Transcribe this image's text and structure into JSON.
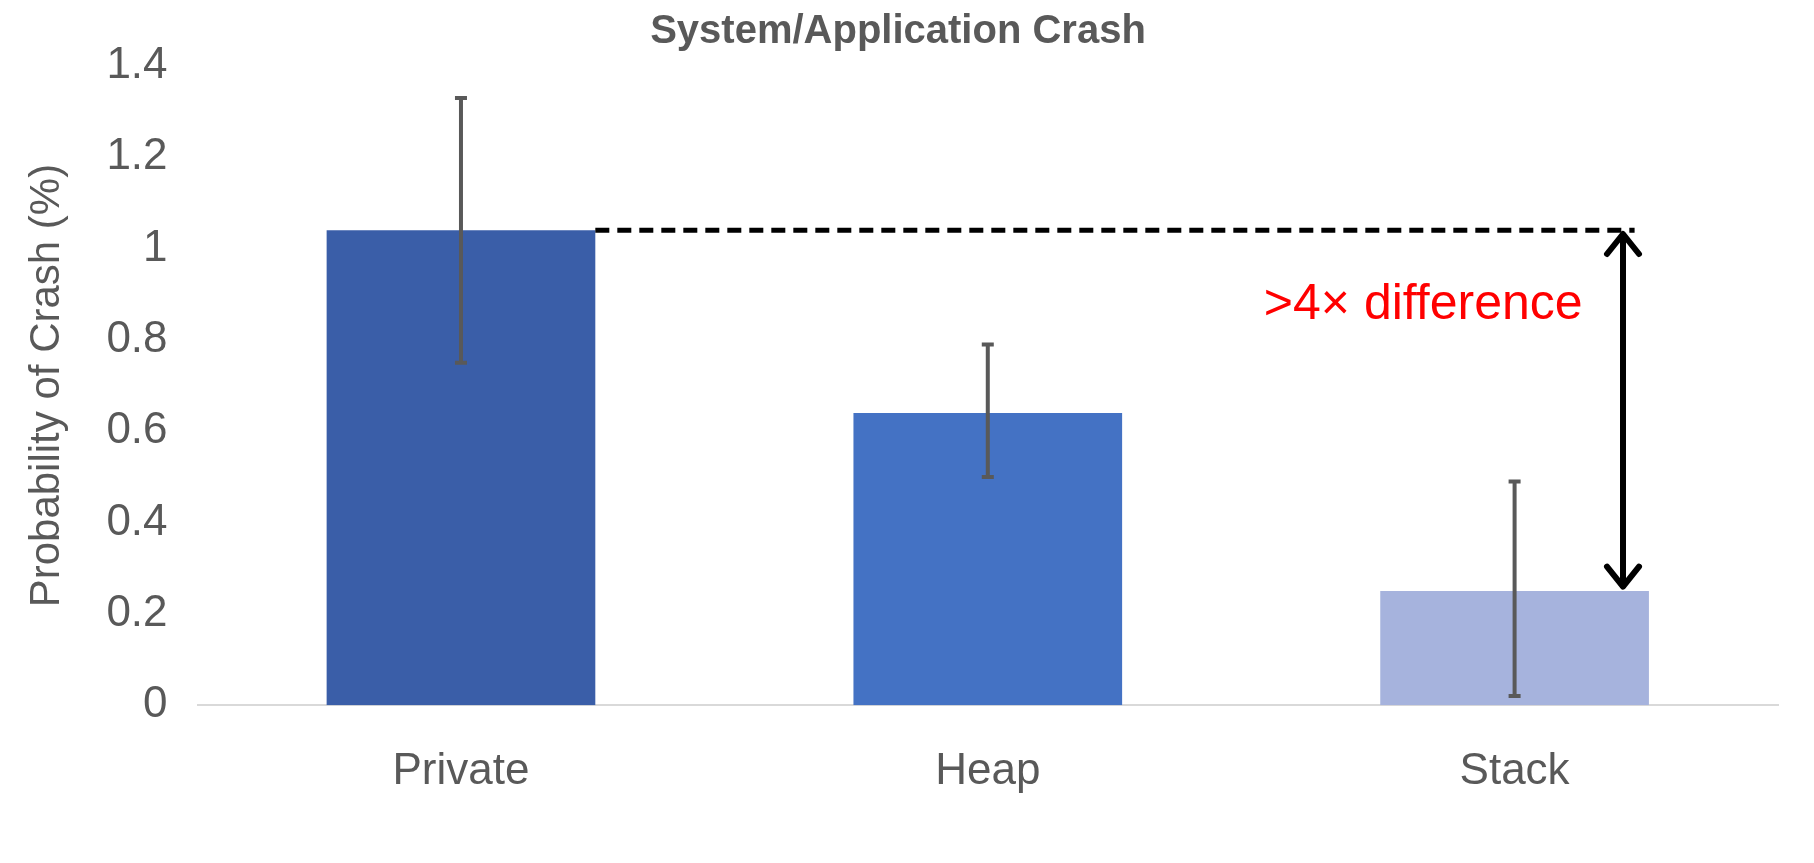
{
  "chart_data": {
    "type": "bar",
    "title": "System/Application Crash",
    "ylabel": "Probability of Crash (%)",
    "categories": [
      "Private",
      "Heap",
      "Stack"
    ],
    "values": [
      1.04,
      0.64,
      0.25
    ],
    "colors": [
      "#3a5ea8",
      "#4472c4",
      "#a6b3dd"
    ],
    "errors": [
      [
        0.75,
        1.33
      ],
      [
        0.5,
        0.79
      ],
      [
        0.02,
        0.49
      ]
    ],
    "ylim": [
      0,
      1.4
    ],
    "yticks": [
      0,
      0.2,
      0.4,
      0.6,
      0.8,
      1,
      1.2,
      1.4
    ],
    "grid": false,
    "legend": false,
    "ref_lines": [
      {
        "axis": "y",
        "value": 1.04,
        "color": "#000000",
        "line_style": "dashed"
      }
    ],
    "annotations": [
      {
        "text": ">4× difference",
        "x": "Stack",
        "y": 1.04
      }
    ]
  }
}
